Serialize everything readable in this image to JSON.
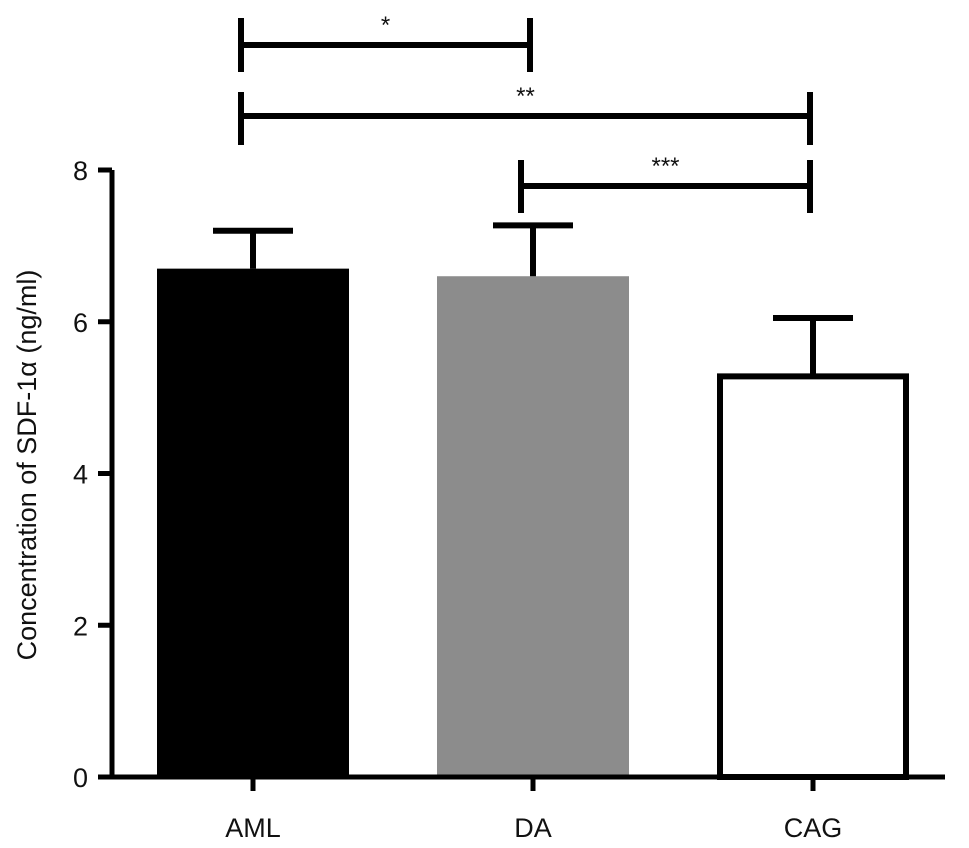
{
  "chart_data": {
    "type": "bar",
    "categories": [
      "AML",
      "DA",
      "CAG"
    ],
    "values": [
      6.7,
      6.6,
      5.28
    ],
    "errors": [
      0.5,
      0.67,
      0.77
    ],
    "bar_colors": [
      "#000000",
      "#8c8c8c",
      "#ffffff"
    ],
    "title": "",
    "xlabel": "",
    "ylabel": "Concentration of SDF-1α (ng/ml)",
    "ylim": [
      0,
      8
    ],
    "yticks": [
      "0",
      "2",
      "4",
      "6",
      "8"
    ],
    "grid": false,
    "significance": [
      {
        "from": "AML",
        "to": "DA",
        "label": "*"
      },
      {
        "from": "AML",
        "to": "CAG",
        "label": "**"
      },
      {
        "from": "DA",
        "to": "CAG",
        "label": "***"
      }
    ]
  }
}
